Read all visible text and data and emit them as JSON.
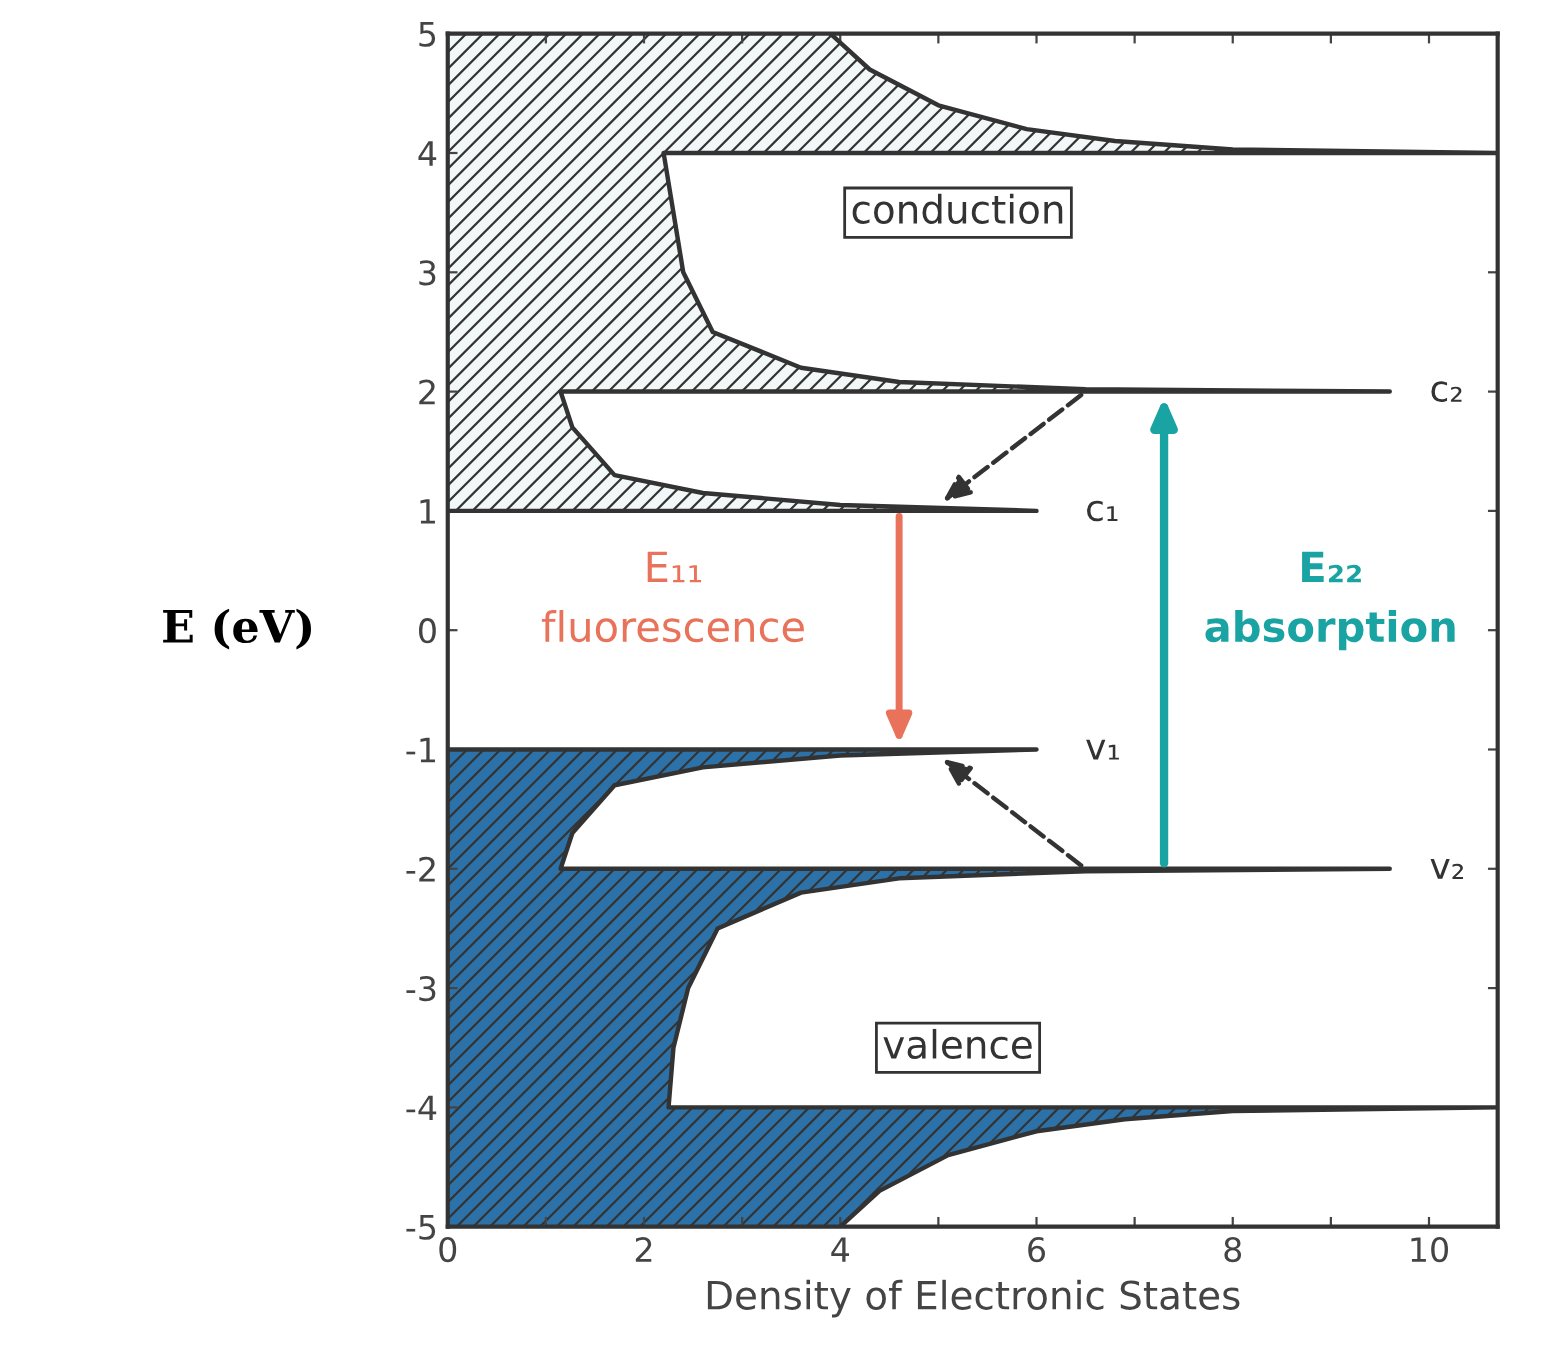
{
  "chart_data": {
    "type": "area",
    "orientation": "horizontal",
    "xlabel": "Density of Electronic States",
    "ylabel": "E (eV)",
    "xlim": [
      0,
      10.7
    ],
    "ylim": [
      -5,
      5
    ],
    "xticks": [
      0,
      {
        "value": 1,
        "label": null
      },
      2,
      {
        "value": 3,
        "label": null
      },
      4,
      {
        "value": 5,
        "label": null
      },
      6,
      {
        "value": 7,
        "label": null
      },
      8,
      {
        "value": 9,
        "label": null
      },
      10
    ],
    "yticks": [
      -5,
      -4,
      -3,
      -2,
      -1,
      0,
      1,
      2,
      3,
      4,
      5
    ],
    "grid": false,
    "series": [
      {
        "color": "#f2f7f7",
        "x": [
          1,
          1,
          1.05,
          1.15,
          1.3,
          1.7,
          2,
          2,
          2.02,
          2.08,
          2.2,
          2.5,
          3,
          3.5,
          4,
          4,
          4.03,
          4.1,
          4.2,
          4.4,
          4.7,
          5
        ],
        "values": [
          0,
          6.0,
          4.0,
          2.6,
          1.7,
          1.27,
          1.15,
          9.6,
          6.5,
          4.6,
          3.6,
          2.7,
          2.4,
          2.3,
          2.2,
          10.7,
          8.0,
          6.8,
          5.9,
          5.0,
          4.3,
          3.9
        ]
      },
      {
        "color": "#2c72a8",
        "x": [
          -5,
          -4.7,
          -4.4,
          -4.2,
          -4.1,
          -4.03,
          -4,
          -4,
          -3.5,
          -3,
          -2.5,
          -2.2,
          -2.08,
          -2.02,
          -2,
          -2,
          -1.7,
          -1.3,
          -1.15,
          -1.05,
          -1,
          -1
        ],
        "values": [
          4.0,
          4.4,
          5.1,
          6.0,
          6.9,
          8.0,
          10.7,
          2.25,
          2.3,
          2.45,
          2.75,
          3.6,
          4.6,
          6.5,
          9.6,
          1.15,
          1.27,
          1.7,
          2.6,
          4.0,
          6.0,
          0
        ]
      }
    ],
    "annotations": [
      "conduction",
      "valence",
      "c₁",
      "c₂",
      "v₁",
      "v₂",
      "E₁₁",
      "fluorescence",
      "E₂₂",
      "absorption"
    ]
  }
}
